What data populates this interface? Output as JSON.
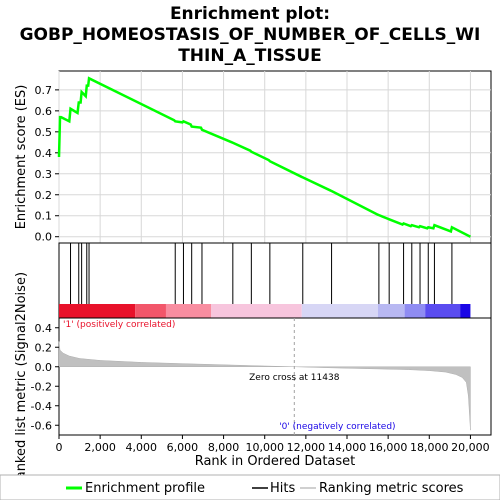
{
  "chart_data": {
    "type": "line",
    "title": "Enrichment plot: GOBP_HOMEOSTASIS_OF_NUMBER_OF_CELLS_WITHIN_A_TISSUE",
    "title_lines": [
      "Enrichment plot:",
      "GOBP_HOMEOSTASIS_OF_NUMBER_OF_CELLS_WI",
      "THIN_A_TISSUE"
    ],
    "es_panel": {
      "ylabel": "Enrichment score (ES)",
      "ylim": [
        -0.03,
        0.79
      ],
      "yticks": [
        0.0,
        0.1,
        0.2,
        0.3,
        0.4,
        0.5,
        0.6,
        0.7
      ],
      "ytick_labels": [
        "0.0",
        "0.1",
        "0.2",
        "0.3",
        "0.4",
        "0.5",
        "0.6",
        "0.7"
      ],
      "grid": true,
      "line_color": "#00ff00",
      "series": [
        {
          "name": "Enrichment profile",
          "x": [
            0,
            50,
            100,
            500,
            560,
            900,
            960,
            1050,
            1100,
            1300,
            1350,
            1420,
            1460,
            5600,
            5650,
            6000,
            6050,
            6400,
            6450,
            6900,
            6950,
            8400,
            8450,
            9300,
            9350,
            10200,
            10250,
            11800,
            11850,
            13200,
            13250,
            15500,
            15550,
            16000,
            16050,
            16700,
            16750,
            17100,
            17150,
            17500,
            17550,
            17900,
            17950,
            18200,
            18250,
            19050,
            19100,
            20000
          ],
          "y": [
            0.38,
            0.57,
            0.57,
            0.55,
            0.61,
            0.59,
            0.64,
            0.64,
            0.69,
            0.67,
            0.72,
            0.72,
            0.755,
            0.555,
            0.55,
            0.545,
            0.55,
            0.535,
            0.525,
            0.52,
            0.51,
            0.45,
            0.448,
            0.41,
            0.405,
            0.365,
            0.36,
            0.285,
            0.283,
            0.22,
            0.218,
            0.105,
            0.103,
            0.085,
            0.083,
            0.058,
            0.063,
            0.05,
            0.055,
            0.045,
            0.05,
            0.04,
            0.045,
            0.04,
            0.055,
            0.025,
            0.045,
            0.0
          ]
        }
      ]
    },
    "hits_panel": {
      "legend_name": "Hits",
      "hits": [
        0,
        560,
        960,
        1100,
        1350,
        1460,
        5650,
        6050,
        6450,
        6950,
        8450,
        9350,
        10250,
        11850,
        13250,
        15550,
        16050,
        16750,
        17150,
        17550,
        17950,
        18250,
        19100
      ]
    },
    "rank_panel": {
      "ylabel": "Ranked list metric (Signal2Noise)",
      "xlabel": "Rank in Ordered Dataset",
      "xlim": [
        0,
        21000
      ],
      "xticks": [
        0,
        2000,
        4000,
        6000,
        8000,
        10000,
        12000,
        14000,
        16000,
        18000,
        20000
      ],
      "xtick_labels": [
        "0",
        "2,000",
        "4,000",
        "6,000",
        "8,000",
        "10,000",
        "12,000",
        "14,000",
        "16,000",
        "18,000",
        "20,000"
      ],
      "ylim": [
        -0.7,
        0.5
      ],
      "yticks": [
        -0.6,
        -0.4,
        -0.2,
        0.0,
        0.2,
        0.4
      ],
      "ytick_labels": [
        "-0.6",
        "-0.4",
        "-0.2",
        "0.0",
        "0.2",
        "0.4"
      ],
      "legend_name": "Ranking metric scores",
      "metric_profile": {
        "x": [
          0,
          50,
          200,
          500,
          1000,
          2000,
          4000,
          6000,
          8000,
          10000,
          11438,
          13000,
          15000,
          17000,
          18000,
          18800,
          19300,
          19600,
          19800,
          19900,
          20000
        ],
        "y": [
          0.26,
          0.17,
          0.14,
          0.11,
          0.085,
          0.065,
          0.045,
          0.032,
          0.02,
          0.008,
          0.0,
          -0.01,
          -0.02,
          -0.03,
          -0.04,
          -0.055,
          -0.08,
          -0.11,
          -0.16,
          -0.3,
          -0.65
        ]
      },
      "zero_cross_label": "Zero cross at 11438",
      "zero_cross": 11438,
      "positive_label": "'1' (positively correlated)",
      "negative_label": "'0' (negatively correlated)",
      "colorbar": [
        {
          "x0": 0,
          "x1": 3700,
          "color": "#e8112a"
        },
        {
          "x0": 3700,
          "x1": 5200,
          "color": "#f2566a"
        },
        {
          "x0": 5200,
          "x1": 7400,
          "color": "#f88da0"
        },
        {
          "x0": 7400,
          "x1": 11800,
          "color": "#f7c5dd"
        },
        {
          "x0": 11800,
          "x1": 15500,
          "color": "#d7d6f5"
        },
        {
          "x0": 15500,
          "x1": 16800,
          "color": "#b8b8f2"
        },
        {
          "x0": 16800,
          "x1": 17800,
          "color": "#8f8cf2"
        },
        {
          "x0": 17800,
          "x1": 19500,
          "color": "#5a4cf0"
        },
        {
          "x0": 19500,
          "x1": 20000,
          "color": "#1a06e6"
        }
      ]
    },
    "legend": [
      {
        "name": "Enrichment profile",
        "color": "#00ff00"
      },
      {
        "name": "Hits",
        "color": "#000000"
      },
      {
        "name": "Ranking metric scores",
        "color": "#c0c0c0"
      }
    ]
  }
}
